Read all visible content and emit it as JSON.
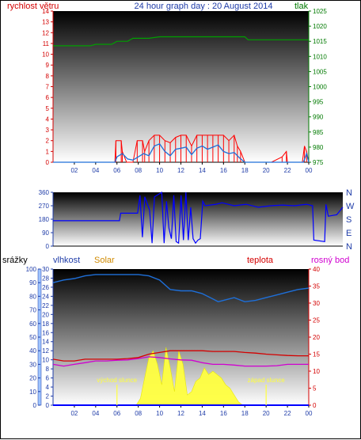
{
  "header": {
    "title": "24 hour graph day : 20 August 2014",
    "left_label": "rychlost větru",
    "right_label": "tlak"
  },
  "colors": {
    "title": "#1f3ca8",
    "wind_speed": "#ff0000",
    "wind_avg": "#1e6fd9",
    "pressure": "#00a000",
    "direction": "#0000ff",
    "humidity": "#1e6fd9",
    "temperature": "#d40000",
    "dewpoint": "#d000d0",
    "solar": "#ffff40",
    "rain": "#0000ff",
    "axis_left": "#d40000",
    "axis_blue": "#1f3ca8",
    "axis_green": "#007a00",
    "axis_purple": "#c000c0"
  },
  "x_ticks": [
    "02",
    "04",
    "06",
    "08",
    "10",
    "12",
    "14",
    "16",
    "18",
    "20",
    "22",
    "00"
  ],
  "chart_data": [
    {
      "type": "line",
      "name": "wind-pressure",
      "y_left": {
        "label": "rychlost větru",
        "lim": [
          0,
          14
        ],
        "ticks": [
          0,
          1,
          2,
          3,
          4,
          5,
          6,
          7,
          8,
          9,
          10,
          11,
          12,
          13,
          14
        ]
      },
      "y_right": {
        "label": "tlak",
        "lim": [
          975,
          1025
        ],
        "ticks": [
          975,
          980,
          985,
          990,
          995,
          1000,
          1005,
          1010,
          1015,
          1020,
          1025
        ]
      },
      "series": [
        {
          "name": "gust",
          "axis": "left",
          "x": [
            0,
            5.8,
            5.9,
            6.4,
            6.5,
            6.9,
            7.5,
            7.9,
            8.4,
            8.6,
            9.0,
            9.5,
            10.0,
            10.5,
            11.0,
            11.5,
            12.0,
            12.5,
            13.0,
            13.5,
            14.0,
            14.5,
            15.0,
            15.5,
            16.0,
            16.5,
            17.0,
            17.3,
            17.6,
            18.0,
            20.5,
            21.5,
            21.9,
            22.0,
            23.4,
            23.6,
            23.8,
            24
          ],
          "y": [
            0,
            0,
            2,
            2,
            1,
            0,
            0,
            2,
            2,
            1,
            2,
            2.5,
            2.5,
            2,
            1.8,
            2.3,
            2.5,
            2.5,
            1.5,
            2.5,
            2.5,
            2.5,
            2.5,
            2.5,
            2.5,
            2,
            2.5,
            1.5,
            1,
            0,
            0,
            0.5,
            1,
            0,
            0,
            1.5,
            1,
            0
          ]
        },
        {
          "name": "average",
          "axis": "left",
          "x": [
            0,
            5.8,
            6.0,
            6.5,
            7.0,
            7.5,
            8.0,
            8.5,
            9.0,
            9.5,
            10.0,
            10.5,
            11.0,
            11.5,
            12.0,
            12.5,
            13.0,
            13.5,
            14.0,
            14.5,
            15.0,
            15.5,
            16.0,
            16.5,
            17.0,
            17.5,
            18.0,
            20.0,
            22.0,
            23.5,
            23.8,
            24
          ],
          "y": [
            0,
            0,
            0.5,
            0.8,
            0.3,
            0.2,
            0.5,
            0.8,
            0.6,
            1.5,
            1.7,
            1.0,
            0.6,
            1.2,
            1.3,
            1.4,
            0.7,
            1.3,
            1.5,
            1.2,
            1.4,
            1.6,
            1.0,
            0.8,
            0.9,
            0.4,
            0,
            0,
            0,
            0,
            0.8,
            0
          ]
        },
        {
          "name": "pressure",
          "axis": "right",
          "x": [
            0,
            3.5,
            4.0,
            5.5,
            6.0,
            7.0,
            7.5,
            9.0,
            10.0,
            12.0,
            14.0,
            16.0,
            18.0,
            18.3,
            21.0,
            22.0,
            24
          ],
          "y": [
            1013.5,
            1013.5,
            1014,
            1014,
            1015,
            1015,
            1016,
            1016,
            1016.5,
            1016.5,
            1016.5,
            1016.5,
            1016.5,
            1015.5,
            1015.5,
            1015.5,
            1015.5
          ]
        }
      ]
    },
    {
      "type": "line",
      "name": "wind-direction",
      "y_left": {
        "lim": [
          0,
          360
        ],
        "ticks": [
          0,
          90,
          180,
          270,
          360
        ]
      },
      "y_right": {
        "ticks": [
          "N",
          "E",
          "S",
          "W",
          "N"
        ]
      },
      "series": [
        {
          "name": "direction",
          "x": [
            0,
            5.5,
            5.6,
            7.0,
            7.2,
            7.4,
            7.6,
            8.0,
            8.2,
            8.4,
            9.0,
            9.2,
            9.4,
            9.6,
            9.8,
            10.0,
            10.2,
            10.4,
            10.6,
            10.8,
            11.0,
            11.2,
            11.4,
            11.6,
            11.8,
            12.0,
            12.2,
            12.4,
            12.6,
            13.5,
            14.0,
            15.0,
            16.0,
            17.0,
            18.0,
            19.0,
            20.0,
            21.0,
            21.5,
            21.6,
            22.5,
            22.6,
            22.8,
            23.5,
            24
          ],
          "y": [
            170,
            170,
            220,
            220,
            340,
            60,
            330,
            240,
            20,
            330,
            360,
            20,
            300,
            120,
            50,
            340,
            30,
            20,
            340,
            40,
            360,
            40,
            260,
            50,
            20,
            40,
            50,
            300,
            270,
            280,
            290,
            270,
            280,
            260,
            270,
            275,
            270,
            280,
            270,
            40,
            30,
            280,
            200,
            210,
            260
          ]
        }
      ]
    },
    {
      "type": "line",
      "name": "humidity-solar-temperature",
      "y_rain": {
        "label": "srážky",
        "lim": [
          0,
          100
        ],
        "ticks": [
          0,
          10,
          20,
          30,
          40,
          50,
          60,
          70,
          80,
          90,
          100
        ]
      },
      "y_humidity": {
        "label": "vlhkost",
        "lim": [
          0,
          30
        ],
        "ticks": [
          0,
          2,
          4,
          6,
          8,
          10,
          12,
          14,
          16,
          18,
          20,
          22,
          24,
          26,
          28,
          30
        ]
      },
      "y_right": {
        "label": "teplota",
        "lim": [
          0,
          40
        ],
        "ticks": [
          0,
          5,
          10,
          15,
          20,
          25,
          30,
          35,
          40
        ]
      },
      "legend": [
        "Solar",
        "teplota",
        "rosný bod"
      ],
      "annotations": [
        {
          "text": "východ slunce",
          "x": 6.0
        },
        {
          "text": "západ slunce",
          "x": 20.0
        }
      ],
      "series": [
        {
          "name": "humidity",
          "axis": "rain",
          "x": [
            0,
            1.0,
            2.0,
            3.0,
            4.0,
            5.0,
            6.0,
            7.0,
            8.0,
            9.0,
            10.0,
            11.0,
            12.0,
            13.0,
            14.0,
            15.0,
            15.5,
            16.0,
            17.0,
            18.0,
            19.0,
            20.0,
            21.0,
            22.0,
            23.0,
            24
          ],
          "y": [
            90,
            92,
            93,
            95,
            96,
            96,
            96,
            96,
            96,
            95,
            92,
            85,
            84,
            84,
            82,
            78,
            76,
            77,
            79,
            76,
            77,
            79,
            81,
            83,
            85,
            86
          ]
        },
        {
          "name": "teplota",
          "axis": "right",
          "x": [
            0,
            1.0,
            2.0,
            3.0,
            4.0,
            5.0,
            6.0,
            7.0,
            8.0,
            9.0,
            10.0,
            11.0,
            12.0,
            13.0,
            14.0,
            15.0,
            16.0,
            17.0,
            18.0,
            19.0,
            20.0,
            21.0,
            22.0,
            23.0,
            24
          ],
          "y": [
            13.5,
            13,
            13,
            13.5,
            13.5,
            13.5,
            13.5,
            13.7,
            14,
            15,
            15.5,
            16,
            16,
            16,
            16,
            15.8,
            15.8,
            15.8,
            15.5,
            15.3,
            15,
            14.8,
            14.6,
            14.5,
            14.5
          ]
        },
        {
          "name": "rosný bod",
          "axis": "right",
          "x": [
            0,
            1.0,
            2.0,
            3.0,
            4.0,
            5.0,
            6.0,
            7.0,
            8.0,
            9.0,
            10.0,
            11.0,
            12.0,
            13.0,
            14.0,
            15.0,
            16.0,
            17.0,
            18.0,
            19.0,
            20.0,
            21.0,
            22.0,
            23.0,
            24
          ],
          "y": [
            12,
            11.5,
            12,
            12.5,
            13,
            13,
            13.2,
            13.3,
            13.7,
            14.2,
            14,
            13.6,
            13.3,
            13.2,
            12.5,
            12.0,
            12.0,
            11.8,
            11.5,
            11.5,
            11.5,
            11.6,
            12,
            12,
            12
          ]
        },
        {
          "name": "Solar",
          "axis": "right",
          "x": [
            0,
            7.8,
            8.2,
            8.6,
            9.0,
            9.4,
            9.8,
            10.2,
            10.6,
            11.0,
            11.4,
            11.8,
            12.2,
            12.6,
            13.0,
            13.4,
            13.8,
            14.2,
            14.6,
            15.0,
            15.4,
            15.8,
            16.2,
            16.6,
            17.0,
            17.4,
            17.8,
            24
          ],
          "y": [
            0,
            0,
            2,
            8,
            14,
            16,
            12,
            6,
            17,
            11,
            4,
            16,
            12,
            3,
            4,
            7,
            8,
            11,
            9,
            10,
            9,
            8,
            6,
            5,
            3,
            1,
            0,
            0
          ]
        },
        {
          "name": "srážky",
          "axis": "rain",
          "x": [
            0,
            24
          ],
          "y": [
            0,
            0
          ]
        }
      ]
    }
  ]
}
